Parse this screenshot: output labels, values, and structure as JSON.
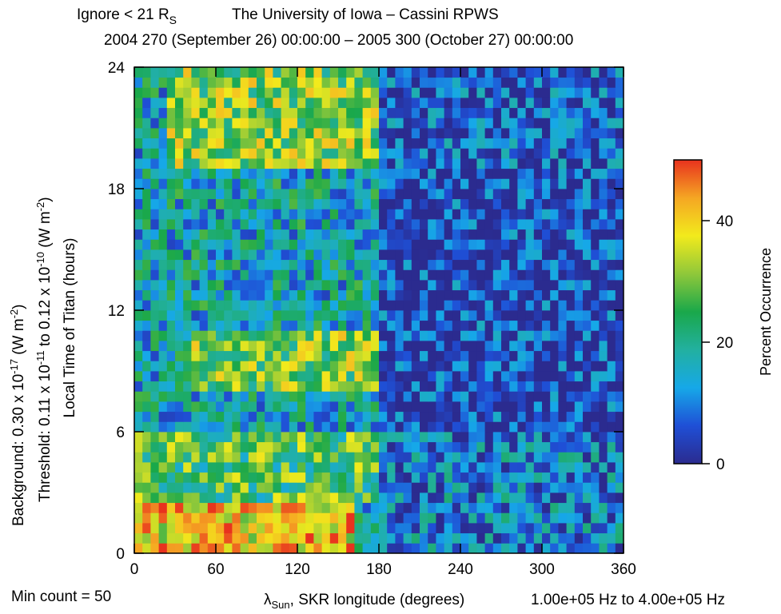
{
  "header": {
    "ignore_prefix": "Ignore < 21 R",
    "ignore_sub": "S",
    "source": "The University of Iowa – Cassini RPWS",
    "date_range": "2004 270 (September 26) 00:00:00 – 2005 300 (October 27) 00:00:00"
  },
  "side_labels": {
    "background_prefix": "Background:  0.30 x 10",
    "background_exp": "-17",
    "background_unit": " (W m",
    "background_unit_exp": "-2",
    "background_close": ")",
    "threshold_prefix": "Threshold:  0.11 x 10",
    "threshold_exp1": "-11",
    "threshold_mid": "  to  0.12 x 10",
    "threshold_exp2": "-10",
    "threshold_unit": " (W m",
    "threshold_unit_exp": "-2",
    "threshold_close": ")"
  },
  "footer": {
    "min_count": "Min count = 50",
    "freq_range": "1.00e+05 Hz to  4.00e+05 Hz"
  },
  "chart_data": {
    "type": "heatmap",
    "xlabel_symbol": "λ",
    "xlabel_sub": "Sun",
    "xlabel_rest": ", SKR longitude (degrees)",
    "ylabel": "Local Time of Titan (hours)",
    "xlim": [
      0,
      360
    ],
    "ylim": [
      0,
      24
    ],
    "x_ticks": [
      "0",
      "60",
      "120",
      "180",
      "240",
      "300",
      "360"
    ],
    "y_ticks": [
      "0",
      "6",
      "12",
      "18",
      "24"
    ],
    "colorbar": {
      "label": "Percent Occurrence",
      "range": [
        0,
        50
      ],
      "ticks": [
        "0",
        "20",
        "40"
      ],
      "colormap": [
        "#2b2b8f",
        "#1f4fd6",
        "#16a8e8",
        "#22b0a0",
        "#1aa84a",
        "#8fc83a",
        "#f2ea1c",
        "#f5a623",
        "#e8321e"
      ]
    },
    "grid": {
      "x_step_deg": 6,
      "y_step_hours": 0.5,
      "regions": [
        {
          "lt": [
            0,
            2.5
          ],
          "lon": [
            0,
            160
          ],
          "level": 40
        },
        {
          "lt": [
            2.5,
            6
          ],
          "lon": [
            0,
            180
          ],
          "level": 26
        },
        {
          "lt": [
            8,
            11
          ],
          "lon": [
            40,
            180
          ],
          "level": 30
        },
        {
          "lt": [
            19,
            24
          ],
          "lon": [
            20,
            180
          ],
          "level": 30
        },
        {
          "lt": [
            6,
            19
          ],
          "lon": [
            180,
            360
          ],
          "level": 4
        },
        {
          "lt": [
            0,
            6
          ],
          "lon": [
            180,
            360
          ],
          "level": 10
        },
        {
          "lt": [
            19,
            24
          ],
          "lon": [
            180,
            360
          ],
          "level": 6
        }
      ],
      "background_level": 16
    }
  }
}
